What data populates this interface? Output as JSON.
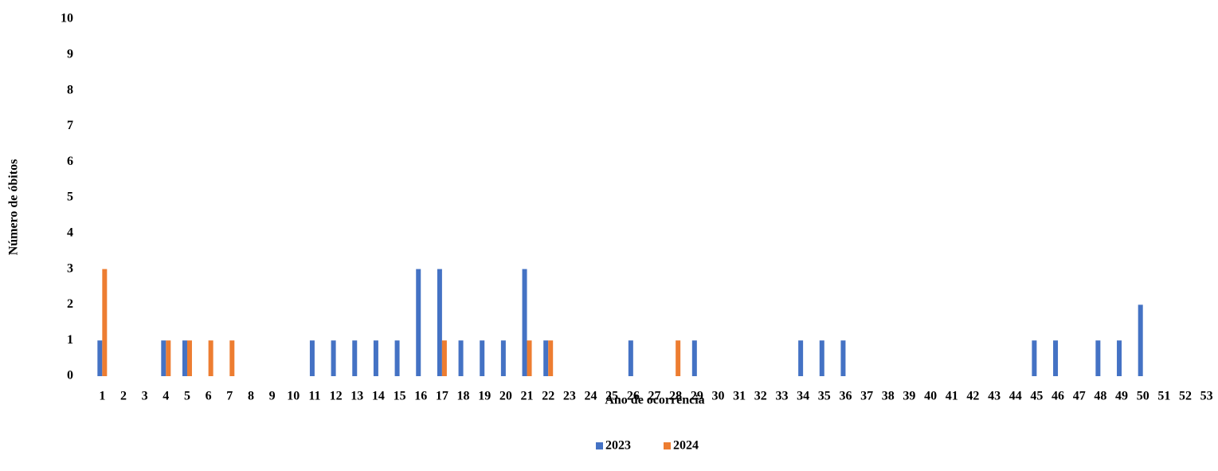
{
  "chart_data": {
    "type": "bar",
    "x_label": "Ano de ocorrência",
    "y_label": "Número de óbitos",
    "categories": [
      1,
      2,
      3,
      4,
      5,
      6,
      7,
      8,
      9,
      10,
      11,
      12,
      13,
      14,
      15,
      16,
      17,
      18,
      19,
      20,
      21,
      22,
      23,
      24,
      25,
      26,
      27,
      28,
      29,
      30,
      31,
      32,
      33,
      34,
      35,
      36,
      37,
      38,
      39,
      40,
      41,
      42,
      43,
      44,
      45,
      46,
      47,
      48,
      49,
      50,
      51,
      52,
      53
    ],
    "series": [
      {
        "name": "2023",
        "color": "#4472c4",
        "values": [
          1,
          0,
          0,
          1,
          1,
          0,
          0,
          0,
          0,
          0,
          1,
          1,
          1,
          1,
          1,
          3,
          3,
          1,
          1,
          1,
          3,
          1,
          0,
          0,
          0,
          1,
          0,
          0,
          1,
          0,
          0,
          0,
          0,
          1,
          1,
          1,
          0,
          0,
          0,
          0,
          0,
          0,
          0,
          0,
          1,
          1,
          0,
          1,
          1,
          2,
          0,
          0,
          0
        ]
      },
      {
        "name": "2024",
        "color": "#ed7d31",
        "values": [
          3,
          0,
          0,
          1,
          1,
          1,
          1,
          0,
          0,
          0,
          0,
          0,
          0,
          0,
          0,
          0,
          1,
          0,
          0,
          0,
          1,
          1,
          0,
          0,
          0,
          0,
          0,
          1,
          0,
          0,
          0,
          0,
          0,
          0,
          0,
          0,
          0,
          0,
          0,
          0,
          0,
          0,
          0,
          0,
          0,
          0,
          0,
          0,
          0,
          0,
          0,
          0,
          0
        ]
      }
    ],
    "ylim": [
      0,
      10
    ],
    "yticks": [
      0,
      1,
      2,
      3,
      4,
      5,
      6,
      7,
      8,
      9,
      10
    ],
    "grid": false,
    "legend": "bottom"
  }
}
